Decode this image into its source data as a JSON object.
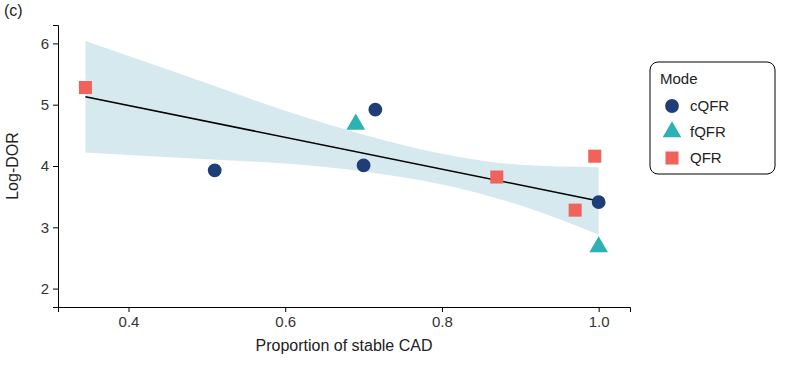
{
  "chart_data": {
    "type": "scatter",
    "title": "(c)",
    "x_label": "Proportion of stable CAD",
    "y_label": "Log-DOR",
    "legend_title": "Mode",
    "legend": "right",
    "grid": false,
    "xlim": [
      0.31,
      1.04
    ],
    "ylim": [
      1.7,
      6.3
    ],
    "xticks": [
      0.4,
      0.6,
      0.8,
      {
        "value": 1,
        "label": "1.0"
      }
    ],
    "yticks": [
      2,
      3,
      4,
      5,
      6
    ],
    "series": [
      {
        "name": "cQFR",
        "color": "#1f3e78",
        "marker": "circle",
        "x": [
          0.51,
          0.7,
          0.715,
          1.0
        ],
        "values": [
          3.93,
          4.01,
          4.92,
          3.41
        ]
      },
      {
        "name": "fQFR",
        "color": "#2cb1b6",
        "marker": "triangle",
        "x": [
          0.69,
          1.0
        ],
        "values": [
          4.68,
          2.68
        ]
      },
      {
        "name": "QFR",
        "color": "#ef635b",
        "marker": "square",
        "x": [
          0.345,
          0.87,
          0.97,
          0.995
        ],
        "values": [
          5.28,
          3.82,
          3.28,
          4.16
        ]
      }
    ],
    "fit": {
      "color": "#000000",
      "x": [
        0.345,
        1.0
      ],
      "values": [
        5.13,
        3.43
      ]
    },
    "confidence_band": {
      "color": "#d6e9ef",
      "x": [
        0.345,
        0.5,
        0.6,
        0.7,
        0.8,
        0.9,
        1.0
      ],
      "lower": [
        4.22,
        4.11,
        4.04,
        3.91,
        3.7,
        3.36,
        2.88
      ],
      "upper": [
        6.04,
        5.35,
        4.9,
        4.51,
        4.2,
        4.02,
        3.98
      ]
    }
  }
}
